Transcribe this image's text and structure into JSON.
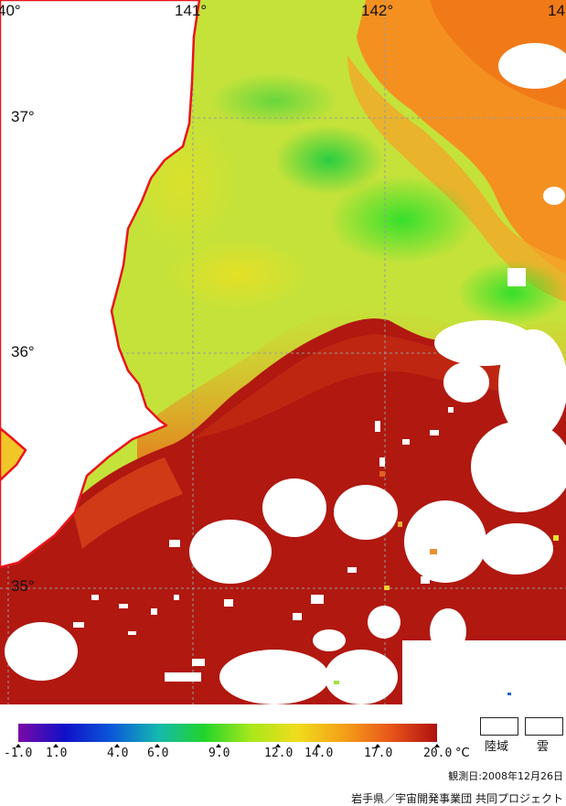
{
  "map": {
    "longitude_labels": [
      "40°",
      "141°",
      "142°",
      "14"
    ],
    "latitude_labels": [
      "37°",
      "36°",
      "35°"
    ],
    "colors": {
      "coast": "#e8151b",
      "grid": "#9a9a9a",
      "land": "#ffffff",
      "cloud": "#ffffff"
    }
  },
  "colorbar": {
    "tick_labels": [
      "-1.0",
      "1.0",
      "4.0",
      "6.0",
      "9.0",
      "12.0",
      "14.0",
      "17.0",
      "20.0"
    ],
    "unit": "°C",
    "stops": [
      "#7a0aa6",
      "#1010c8",
      "#0a58d8",
      "#14b8b0",
      "#22d42a",
      "#a8e81a",
      "#f0dc1c",
      "#f4a018",
      "#e8561a",
      "#b01010"
    ]
  },
  "legend": {
    "land_label": "陸域",
    "cloud_label": "雲"
  },
  "observation_date": "観測日:2008年12月26日",
  "credit": "岩手県／宇宙開発事業団 共同プロジェクト"
}
